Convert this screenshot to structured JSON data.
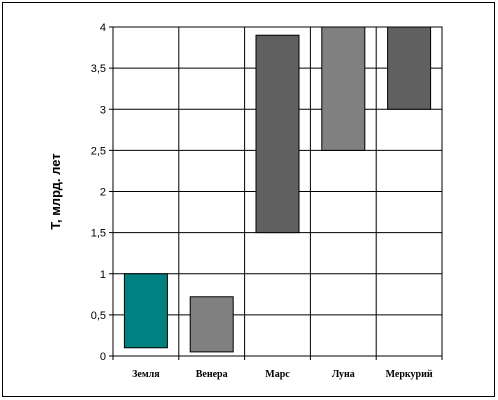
{
  "chart_data": {
    "type": "floating-bar",
    "ylabel": "Т, млрд. лет",
    "ylim": [
      0,
      4
    ],
    "yticks": [
      "0",
      "0,5",
      "1",
      "1,5",
      "2",
      "2,5",
      "3",
      "3,5",
      "4"
    ],
    "grid": true,
    "categories": [
      "Земля",
      "Венера",
      "Марс",
      "Луна",
      "Меркурий"
    ],
    "bars": [
      {
        "low": 0.1,
        "high": 1.0,
        "color": "#008080"
      },
      {
        "low": 0.05,
        "high": 0.72,
        "color": "#808080"
      },
      {
        "low": 1.5,
        "high": 3.9,
        "color": "#606060"
      },
      {
        "low": 2.5,
        "high": 4.0,
        "color": "#808080"
      },
      {
        "low": 3.0,
        "high": 4.0,
        "color": "#606060"
      }
    ]
  }
}
